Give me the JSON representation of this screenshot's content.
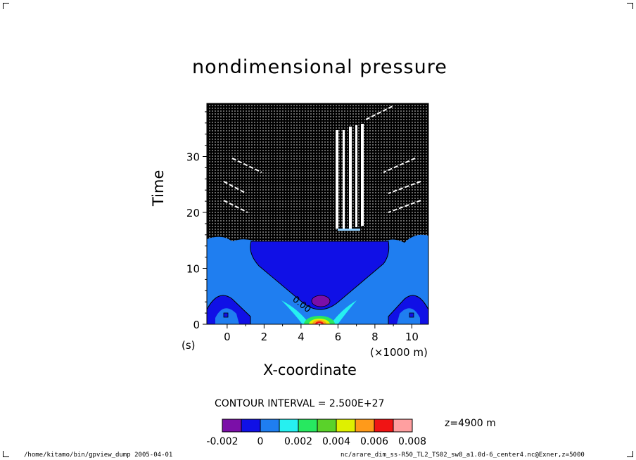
{
  "chart_data": {
    "type": "heatmap",
    "title": "nondimensional pressure",
    "xlabel": "X-coordinate",
    "ylabel": "Time",
    "x_unit_label": "(×1000 m)",
    "y_unit_label": "(s)",
    "xlim": [
      -1.1,
      10.9
    ],
    "ylim": [
      0,
      39.5
    ],
    "x_ticks": [
      "0",
      "2",
      "4",
      "6",
      "8",
      "10"
    ],
    "y_ticks": [
      "0",
      "10",
      "20",
      "30"
    ],
    "contour_interval_label": "CONTOUR INTERVAL = 2.500E+27",
    "level_note": "z=4900  m",
    "contour_label": "0.00",
    "colorbar": {
      "colors": [
        "#7b0fa8",
        "#1010e6",
        "#1f7ef0",
        "#26f0f0",
        "#27e860",
        "#5ad22a",
        "#dff000",
        "#ff9a1a",
        "#f01414",
        "#ff9fa0"
      ],
      "tick_labels": [
        "-0.002",
        "0",
        "0.002",
        "0.004",
        "0.006",
        "0.008"
      ]
    },
    "regions": [
      {
        "name": "lower-band",
        "level": "0 to 0.002",
        "color": "#1f7ef0"
      },
      {
        "name": "central-trough",
        "level": "-0.002 to 0",
        "color": "#1010e6"
      },
      {
        "name": "central-minimum",
        "level": "< -0.002",
        "color": "#7b0fa8"
      },
      {
        "name": "source-peak",
        "level": "> 0.008",
        "color": "#ff9fa0"
      },
      {
        "name": "upper-stippled",
        "level": "dense contours",
        "color": "#000000"
      }
    ]
  },
  "footer": {
    "left": "/home/kitamo/bin/gpview_dump  2005-04-01",
    "right": "nc/arare_dim_ss-R50_TL2_TS02_sw8_a1.0d-6_center4.nc@Exner,z=5000"
  }
}
